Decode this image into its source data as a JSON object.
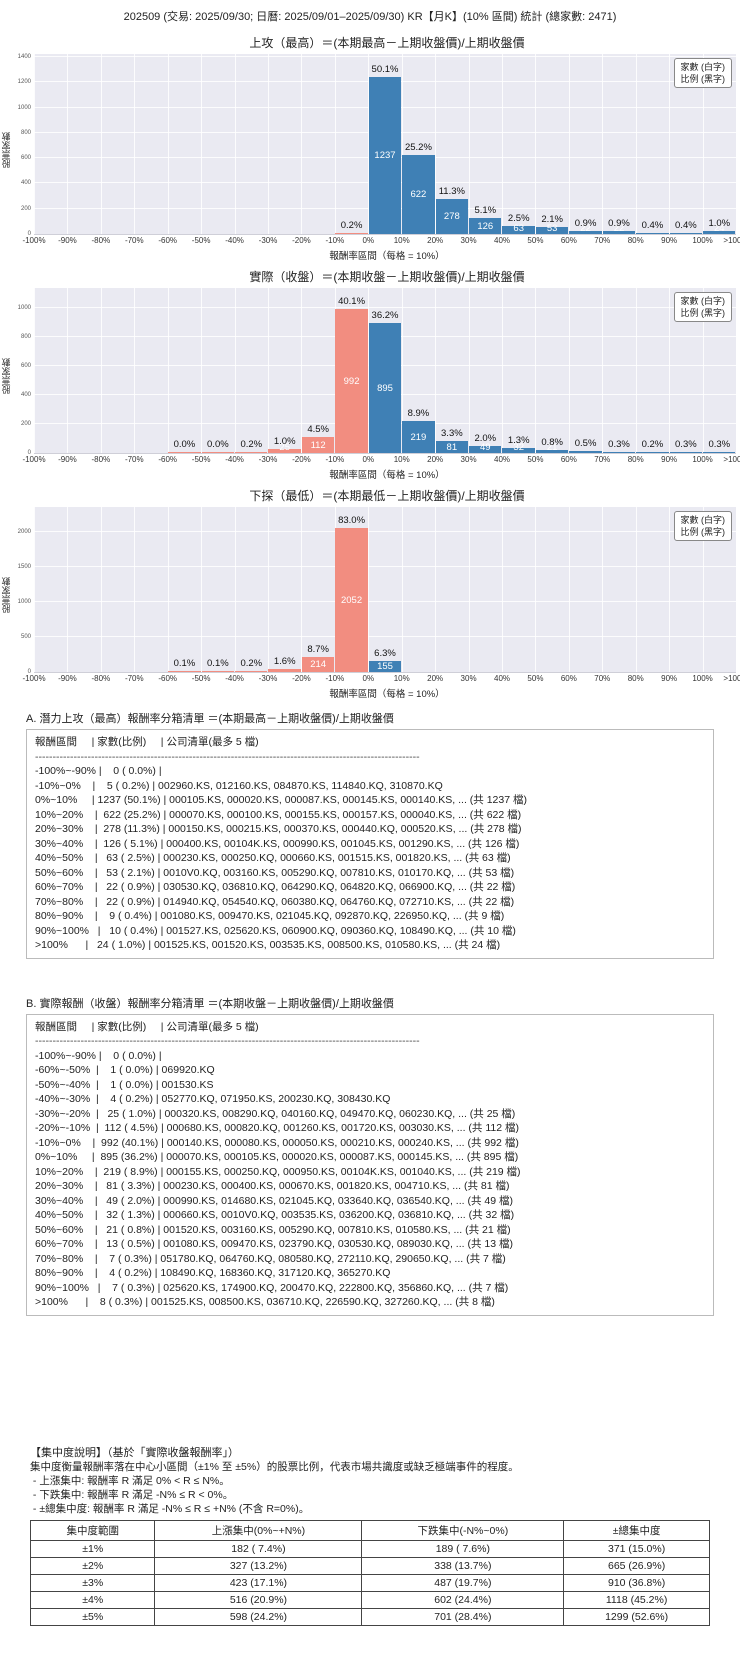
{
  "page_title": "202509 (交易: 2025/09/30; 日曆: 2025/09/01–2025/09/30) KR【月K】(10% 區間) 統計 (總家數: 2471)",
  "legend": {
    "line1": "家數 (白字)",
    "line2": "比例 (黑字)"
  },
  "axis": {
    "ylabel": "股票家數",
    "xlabel": "報酬率區間（每格 = 10%）"
  },
  "chart_data": [
    {
      "type": "bar",
      "title": "上攻（最高）＝(本期最高－上期收盤價)/上期收盤價",
      "categories": [
        "-100%~-90%",
        "-90%~-80%",
        "-80%~-70%",
        "-70%~-60%",
        "-60%~-50%",
        "-50%~-40%",
        "-40%~-30%",
        "-30%~-20%",
        "-20%~-10%",
        "-10%~0%",
        "0%~10%",
        "10%~20%",
        "20%~30%",
        "30%~40%",
        "40%~50%",
        "50%~60%",
        "60%~70%",
        "70%~80%",
        "80%~90%",
        "90%~100%",
        ">100%"
      ],
      "values": [
        0,
        0,
        0,
        0,
        0,
        0,
        0,
        0,
        0,
        5,
        1237,
        622,
        278,
        126,
        63,
        53,
        22,
        22,
        9,
        10,
        24
      ],
      "pct_labels": [
        null,
        null,
        null,
        null,
        null,
        null,
        null,
        null,
        null,
        "0.2%",
        "50.1%",
        "25.2%",
        "11.3%",
        "5.1%",
        "2.5%",
        "2.1%",
        "0.9%",
        "0.9%",
        "0.4%",
        "0.4%",
        "1.0%"
      ],
      "xticks": [
        "-100%",
        "-90%",
        "-80%",
        "-70%",
        "-60%",
        "-50%",
        "-40%",
        "-30%",
        "-20%",
        "-10%",
        "0%",
        "10%",
        "20%",
        "30%",
        "40%",
        "50%",
        "60%",
        "70%",
        "80%",
        "90%",
        "100%",
        ">100%"
      ],
      "yticks": [
        0,
        200,
        400,
        600,
        800,
        1000,
        1200,
        1400
      ],
      "ylim": [
        0,
        1423
      ],
      "split_index": 10,
      "count_label_min": 20,
      "colors": {
        "neg": "#f28d80",
        "pos": "#3f80b5"
      },
      "xlabel": "報酬率區間（每格 = 10%）",
      "ylabel": "股票家數"
    },
    {
      "type": "bar",
      "title": "實際（收盤）＝(本期收盤－上期收盤價)/上期收盤價",
      "categories": [
        "-100%~-90%",
        "-90%~-80%",
        "-80%~-70%",
        "-70%~-60%",
        "-60%~-50%",
        "-50%~-40%",
        "-40%~-30%",
        "-30%~-20%",
        "-20%~-10%",
        "-10%~0%",
        "0%~10%",
        "10%~20%",
        "20%~30%",
        "30%~40%",
        "40%~50%",
        "50%~60%",
        "60%~70%",
        "70%~80%",
        "80%~90%",
        "90%~100%",
        ">100%"
      ],
      "values": [
        0,
        0,
        0,
        0,
        1,
        1,
        4,
        25,
        112,
        992,
        895,
        219,
        81,
        49,
        32,
        21,
        13,
        7,
        4,
        7,
        8
      ],
      "pct_labels": [
        null,
        null,
        null,
        null,
        "0.0%",
        "0.0%",
        "0.2%",
        "1.0%",
        "4.5%",
        "40.1%",
        "36.2%",
        "8.9%",
        "3.3%",
        "2.0%",
        "1.3%",
        "0.8%",
        "0.5%",
        "0.3%",
        "0.2%",
        "0.3%",
        "0.3%"
      ],
      "xticks": [
        "-100%",
        "-90%",
        "-80%",
        "-70%",
        "-60%",
        "-50%",
        "-40%",
        "-30%",
        "-20%",
        "-10%",
        "0%",
        "10%",
        "20%",
        "30%",
        "40%",
        "50%",
        "60%",
        "70%",
        "80%",
        "90%",
        "100%",
        ">100%"
      ],
      "yticks": [
        0,
        200,
        400,
        600,
        800,
        1000
      ],
      "ylim": [
        0,
        1141
      ],
      "split_index": 10,
      "count_label_min": 20,
      "colors": {
        "neg": "#f28d80",
        "pos": "#3f80b5"
      },
      "xlabel": "報酬率區間（每格 = 10%）",
      "ylabel": "股票家數"
    },
    {
      "type": "bar",
      "title": "下探（最低）＝(本期最低－上期收盤價)/上期收盤價",
      "categories": [
        "-100%~-90%",
        "-90%~-80%",
        "-80%~-70%",
        "-70%~-60%",
        "-60%~-50%",
        "-50%~-40%",
        "-40%~-30%",
        "-30%~-20%",
        "-20%~-10%",
        "-10%~0%",
        "0%~10%",
        "10%~20%",
        "20%~30%",
        "30%~40%",
        "40%~50%",
        "50%~60%",
        "60%~70%",
        "70%~80%",
        "80%~90%",
        "90%~100%",
        ">100%"
      ],
      "values": [
        0,
        0,
        0,
        0,
        2,
        3,
        5,
        39,
        214,
        2052,
        155,
        0,
        0,
        0,
        0,
        0,
        0,
        0,
        0,
        0,
        0
      ],
      "pct_labels": [
        null,
        null,
        null,
        null,
        "0.1%",
        "0.1%",
        "0.2%",
        "1.6%",
        "8.7%",
        "83.0%",
        "6.3%",
        null,
        null,
        null,
        null,
        null,
        null,
        null,
        null,
        null,
        null
      ],
      "xticks": [
        "-100%",
        "-90%",
        "-80%",
        "-70%",
        "-60%",
        "-50%",
        "-40%",
        "-30%",
        "-20%",
        "-10%",
        "0%",
        "10%",
        "20%",
        "30%",
        "40%",
        "50%",
        "60%",
        "70%",
        "80%",
        "90%",
        "100%",
        ">100%"
      ],
      "yticks": [
        0,
        500,
        1000,
        1500,
        2000
      ],
      "ylim": [
        0,
        2360
      ],
      "split_index": 10,
      "count_label_min": 100,
      "colors": {
        "neg": "#f28d80",
        "pos": "#3f80b5"
      },
      "xlabel": "報酬率區間（每格 = 10%）",
      "ylabel": "股票家數"
    }
  ],
  "sectionA": {
    "title": "A. 潛力上攻（最高）報酬率分箱清單 ＝(本期最高－上期收盤價)/上期收盤價",
    "header": "報酬區間     | 家數(比例)     | 公司清單(最多 5 檔)",
    "divider": "--------------------------------------------------------------------------------------------------------------",
    "rows": [
      "-100%~-90% |    0 ( 0.0%) |",
      "-10%~0%    |    5 ( 0.2%) | 002960.KS, 012160.KS, 084870.KS, 114840.KQ, 310870.KQ",
      "0%~10%     | 1237 (50.1%) | 000105.KS, 000020.KS, 000087.KS, 000145.KS, 000140.KS, ... (共 1237 檔)",
      "10%~20%    |  622 (25.2%) | 000070.KS, 000100.KS, 000155.KS, 000157.KS, 000040.KS, ... (共 622 檔)",
      "20%~30%    |  278 (11.3%) | 000150.KS, 000215.KS, 000370.KS, 000440.KQ, 000520.KS, ... (共 278 檔)",
      "30%~40%    |  126 ( 5.1%) | 000400.KS, 00104K.KS, 000990.KS, 001045.KS, 001290.KS, ... (共 126 檔)",
      "40%~50%    |   63 ( 2.5%) | 000230.KS, 000250.KQ, 000660.KS, 001515.KS, 001820.KS, ... (共 63 檔)",
      "50%~60%    |   53 ( 2.1%) | 0010V0.KQ, 003160.KS, 005290.KQ, 007810.KS, 010170.KQ, ... (共 53 檔)",
      "60%~70%    |   22 ( 0.9%) | 030530.KQ, 036810.KQ, 064290.KQ, 064820.KQ, 066900.KQ, ... (共 22 檔)",
      "70%~80%    |   22 ( 0.9%) | 014940.KQ, 054540.KQ, 060380.KQ, 064760.KQ, 072710.KS, ... (共 22 檔)",
      "80%~90%    |    9 ( 0.4%) | 001080.KS, 009470.KS, 021045.KQ, 092870.KQ, 226950.KQ, ... (共 9 檔)",
      "90%~100%   |   10 ( 0.4%) | 001527.KS, 025620.KS, 060900.KQ, 090360.KQ, 108490.KQ, ... (共 10 檔)",
      ">100%      |   24 ( 1.0%) | 001525.KS, 001520.KS, 003535.KS, 008500.KS, 010580.KS, ... (共 24 檔)"
    ]
  },
  "sectionB": {
    "title": "B. 實際報酬（收盤）報酬率分箱清單 ＝(本期收盤－上期收盤價)/上期收盤價",
    "header": "報酬區間     | 家數(比例)     | 公司清單(最多 5 檔)",
    "divider": "--------------------------------------------------------------------------------------------------------------",
    "rows": [
      "-100%~-90% |    0 ( 0.0%) |",
      "-60%~-50%  |    1 ( 0.0%) | 069920.KQ",
      "-50%~-40%  |    1 ( 0.0%) | 001530.KS",
      "-40%~-30%  |    4 ( 0.2%) | 052770.KQ, 071950.KS, 200230.KQ, 308430.KQ",
      "-30%~-20%  |   25 ( 1.0%) | 000320.KS, 008290.KQ, 040160.KQ, 049470.KQ, 060230.KQ, ... (共 25 檔)",
      "-20%~-10%  |  112 ( 4.5%) | 000680.KS, 000820.KQ, 001260.KS, 001720.KS, 003030.KS, ... (共 112 檔)",
      "-10%~0%    |  992 (40.1%) | 000140.KS, 000080.KS, 000050.KS, 000210.KS, 000240.KS, ... (共 992 檔)",
      "0%~10%     |  895 (36.2%) | 000070.KS, 000105.KS, 000020.KS, 000087.KS, 000145.KS, ... (共 895 檔)",
      "10%~20%    |  219 ( 8.9%) | 000155.KS, 000250.KQ, 000950.KS, 00104K.KS, 001040.KS, ... (共 219 檔)",
      "20%~30%    |   81 ( 3.3%) | 000230.KS, 000400.KS, 000670.KS, 001820.KS, 004710.KS, ... (共 81 檔)",
      "30%~40%    |   49 ( 2.0%) | 000990.KS, 014680.KS, 021045.KQ, 033640.KQ, 036540.KQ, ... (共 49 檔)",
      "40%~50%    |   32 ( 1.3%) | 000660.KS, 0010V0.KQ, 003535.KS, 036200.KQ, 036810.KQ, ... (共 32 檔)",
      "50%~60%    |   21 ( 0.8%) | 001520.KS, 003160.KS, 005290.KQ, 007810.KS, 010580.KS, ... (共 21 檔)",
      "60%~70%    |   13 ( 0.5%) | 001080.KS, 009470.KS, 023790.KQ, 030530.KQ, 089030.KQ, ... (共 13 檔)",
      "70%~80%    |    7 ( 0.3%) | 051780.KQ, 064760.KQ, 080580.KQ, 272110.KQ, 290650.KQ, ... (共 7 檔)",
      "80%~90%    |    4 ( 0.2%) | 108490.KQ, 168360.KQ, 317120.KQ, 365270.KQ",
      "90%~100%   |    7 ( 0.3%) | 025620.KS, 174900.KQ, 200470.KQ, 222800.KQ, 356860.KQ, ... (共 7 檔)",
      ">100%      |    8 ( 0.3%) | 001525.KS, 008500.KS, 036710.KQ, 226590.KQ, 327260.KQ, ... (共 8 檔)"
    ]
  },
  "concentration": {
    "heading": "【集中度說明】（基於「實際收盤報酬率」）",
    "desc": "集中度衡量報酬率落在中心小區間（±1% 至 ±5%）的股票比例，代表市場共識度或缺乏極端事件的程度。",
    "bullets": [
      " - 上漲集中: 報酬率 R 滿足 0% < R ≤ N%。",
      " - 下跌集中: 報酬率 R 滿足 -N% ≤ R < 0%。",
      " - ±總集中度: 報酬率 R 滿足 -N% ≤ R ≤ +N% (不含 R=0%)。"
    ],
    "table": {
      "headers": [
        "集中度範圍",
        "上漲集中(0%~+N%)",
        "下跌集中(-N%~0%)",
        "±總集中度"
      ],
      "rows": [
        [
          "±1%",
          "182 ( 7.4%)",
          "189 ( 7.6%)",
          "371 (15.0%)"
        ],
        [
          "±2%",
          "327 (13.2%)",
          "338 (13.7%)",
          "665 (26.9%)"
        ],
        [
          "±3%",
          "423 (17.1%)",
          "487 (19.7%)",
          "910 (36.8%)"
        ],
        [
          "±4%",
          "516 (20.9%)",
          "602 (24.4%)",
          "1118 (45.2%)"
        ],
        [
          "±5%",
          "598 (24.2%)",
          "701 (28.4%)",
          "1299 (52.6%)"
        ]
      ]
    }
  }
}
